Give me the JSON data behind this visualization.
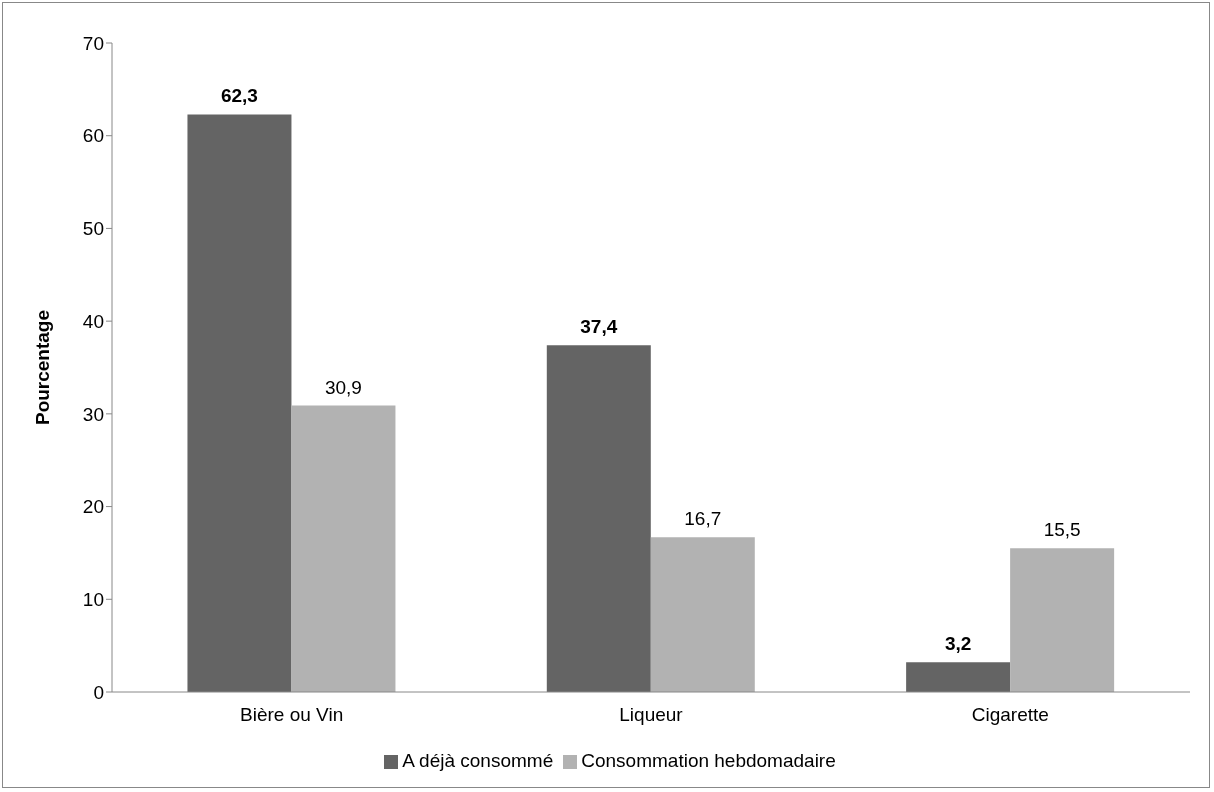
{
  "chart_data": {
    "type": "bar",
    "ylabel": "Pourcentage",
    "categories": [
      "Bière ou Vin",
      "Liqueur",
      "Cigarette"
    ],
    "series": [
      {
        "name": "A déjà consommé",
        "color": "#646464",
        "values": [
          62.3,
          37.4,
          3.2
        ],
        "value_labels": [
          "62,3",
          "37,4",
          "3,2"
        ]
      },
      {
        "name": "Consommation hebdomadaire",
        "color": "#b2b2b2",
        "values": [
          30.9,
          16.7,
          15.5
        ],
        "value_labels": [
          "30,9",
          "16,7",
          "15,5"
        ]
      }
    ],
    "ylim": [
      0,
      70
    ],
    "yticks": [
      0,
      10,
      20,
      30,
      40,
      50,
      60,
      70
    ],
    "grid": false,
    "legend": "bottom"
  }
}
